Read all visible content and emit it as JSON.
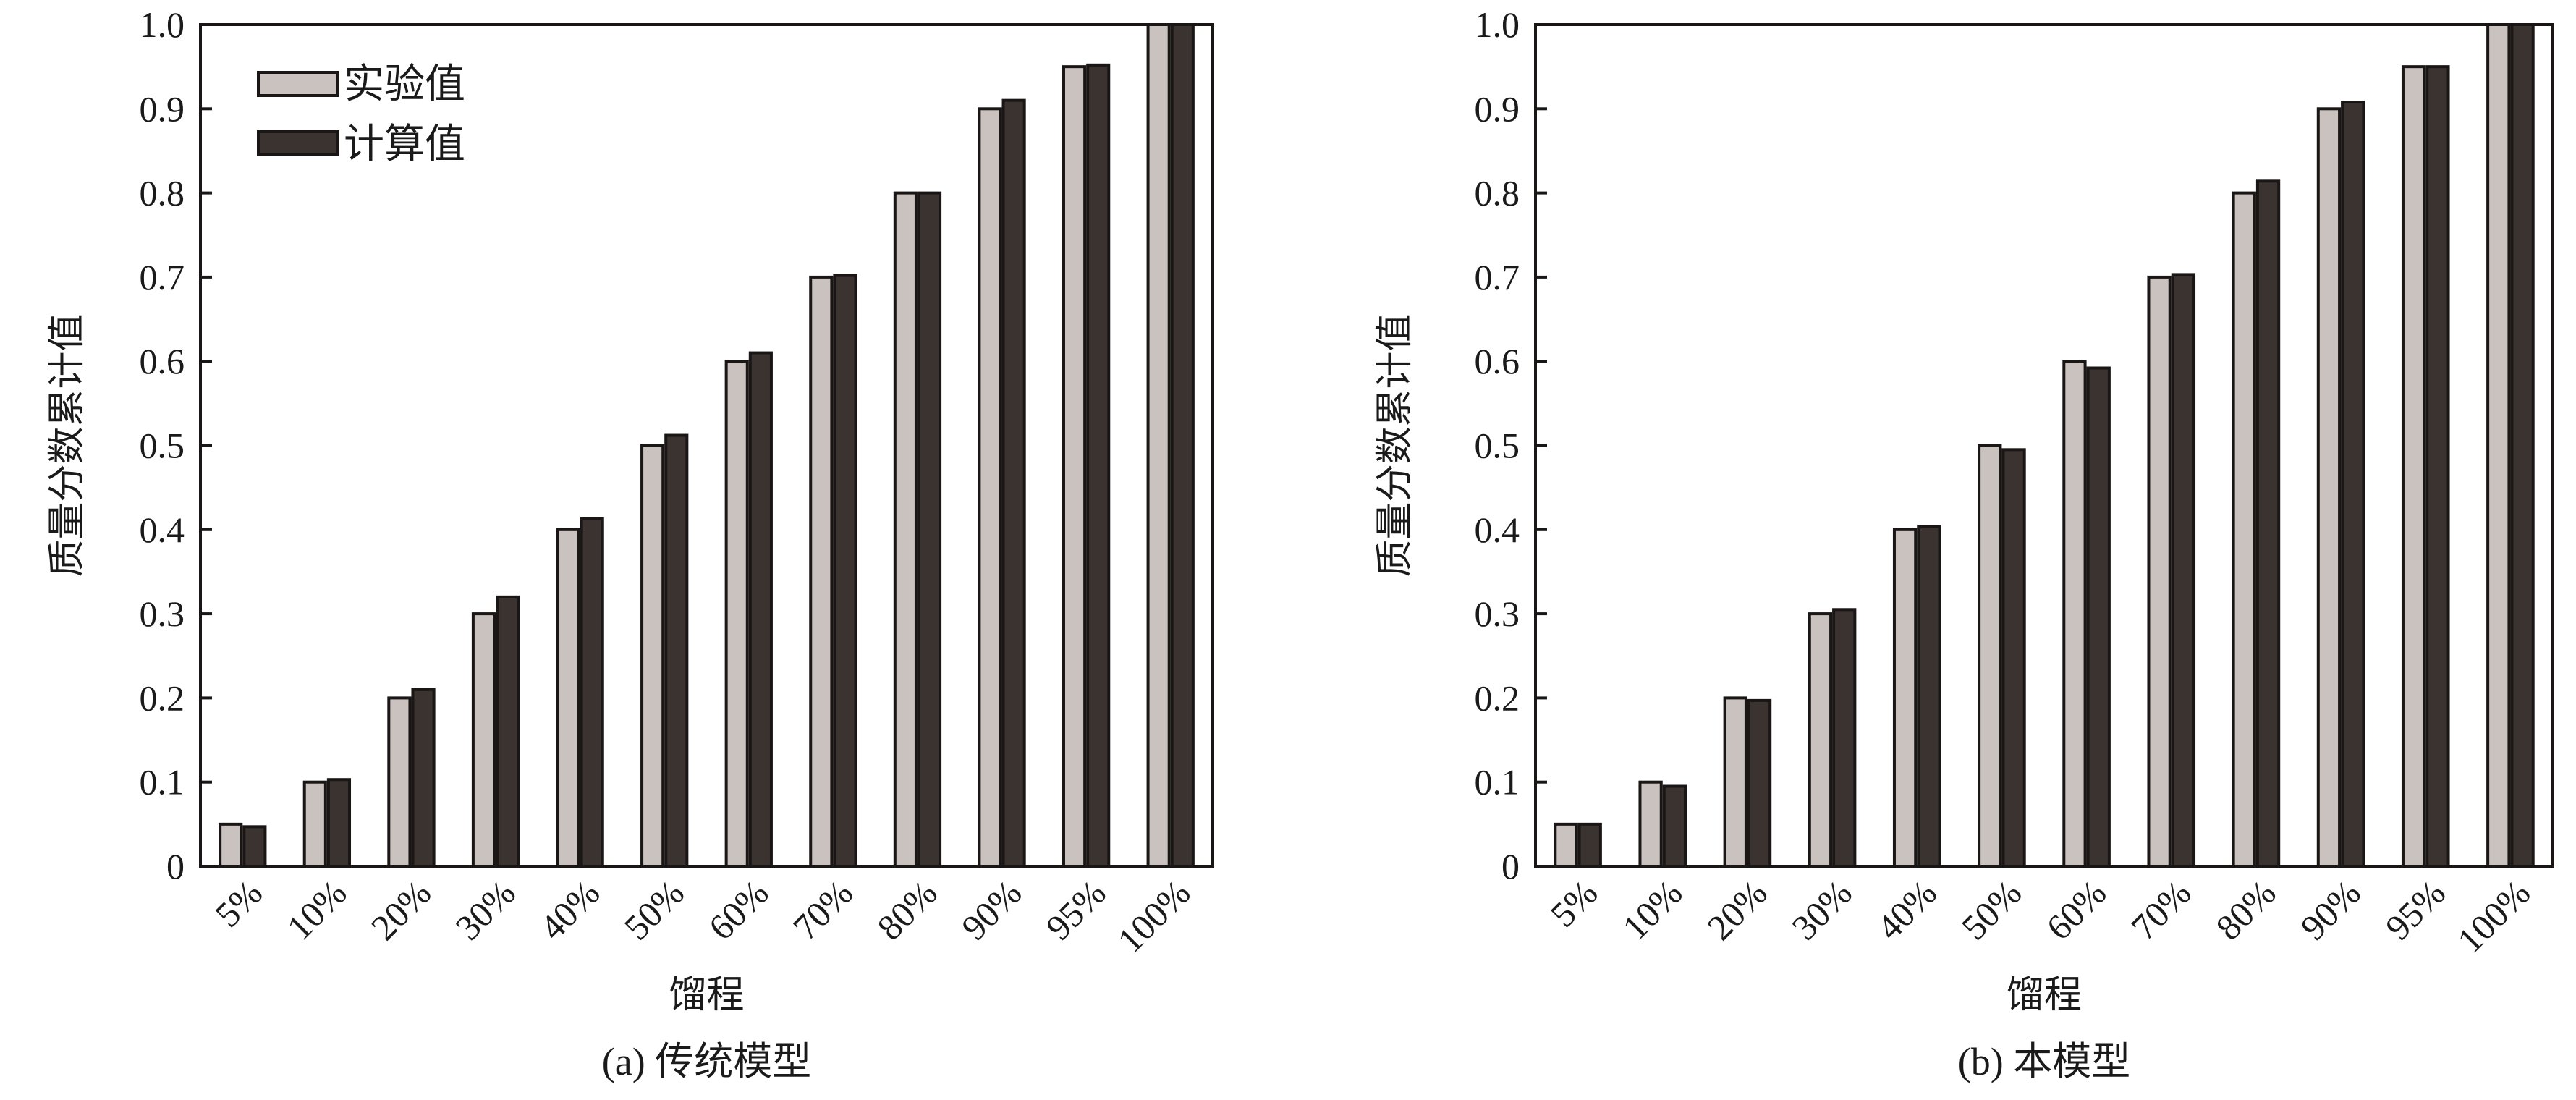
{
  "colors": {
    "experimental": "#c9c2bf",
    "calculated": "#3a3330",
    "stroke": "#1a1616"
  },
  "legend": {
    "experimental": "实验值",
    "calculated": "计算值"
  },
  "chart_data": [
    {
      "type": "bar",
      "title": "(a) 传统模型",
      "xlabel": "馏程",
      "ylabel": "质量分数累计值",
      "ylim": [
        0,
        1.0
      ],
      "yticks": [
        "0",
        "0.1",
        "0.2",
        "0.3",
        "0.4",
        "0.5",
        "0.6",
        "0.7",
        "0.8",
        "0.9",
        "1.0"
      ],
      "categories": [
        "5%",
        "10%",
        "20%",
        "30%",
        "40%",
        "50%",
        "60%",
        "70%",
        "80%",
        "90%",
        "95%",
        "100%"
      ],
      "legend_position": "top-left",
      "series": [
        {
          "name": "实验值",
          "values": [
            0.05,
            0.1,
            0.2,
            0.3,
            0.4,
            0.5,
            0.6,
            0.7,
            0.8,
            0.9,
            0.95,
            1.0
          ]
        },
        {
          "name": "计算值",
          "values": [
            0.047,
            0.103,
            0.21,
            0.32,
            0.413,
            0.512,
            0.61,
            0.702,
            0.8,
            0.91,
            0.952,
            1.0
          ]
        }
      ]
    },
    {
      "type": "bar",
      "title": "(b) 本模型",
      "xlabel": "馏程",
      "ylabel": "质量分数累计值",
      "ylim": [
        0,
        1.0
      ],
      "yticks": [
        "0",
        "0.1",
        "0.2",
        "0.3",
        "0.4",
        "0.5",
        "0.6",
        "0.7",
        "0.8",
        "0.9",
        "1.0"
      ],
      "categories": [
        "5%",
        "10%",
        "20%",
        "30%",
        "40%",
        "50%",
        "60%",
        "70%",
        "80%",
        "90%",
        "95%",
        "100%"
      ],
      "legend_position": "none",
      "series": [
        {
          "name": "实验值",
          "values": [
            0.05,
            0.1,
            0.2,
            0.3,
            0.4,
            0.5,
            0.6,
            0.7,
            0.8,
            0.9,
            0.95,
            1.0
          ]
        },
        {
          "name": "计算值",
          "values": [
            0.05,
            0.095,
            0.197,
            0.305,
            0.404,
            0.495,
            0.592,
            0.703,
            0.814,
            0.908,
            0.95,
            1.0
          ]
        }
      ]
    }
  ]
}
